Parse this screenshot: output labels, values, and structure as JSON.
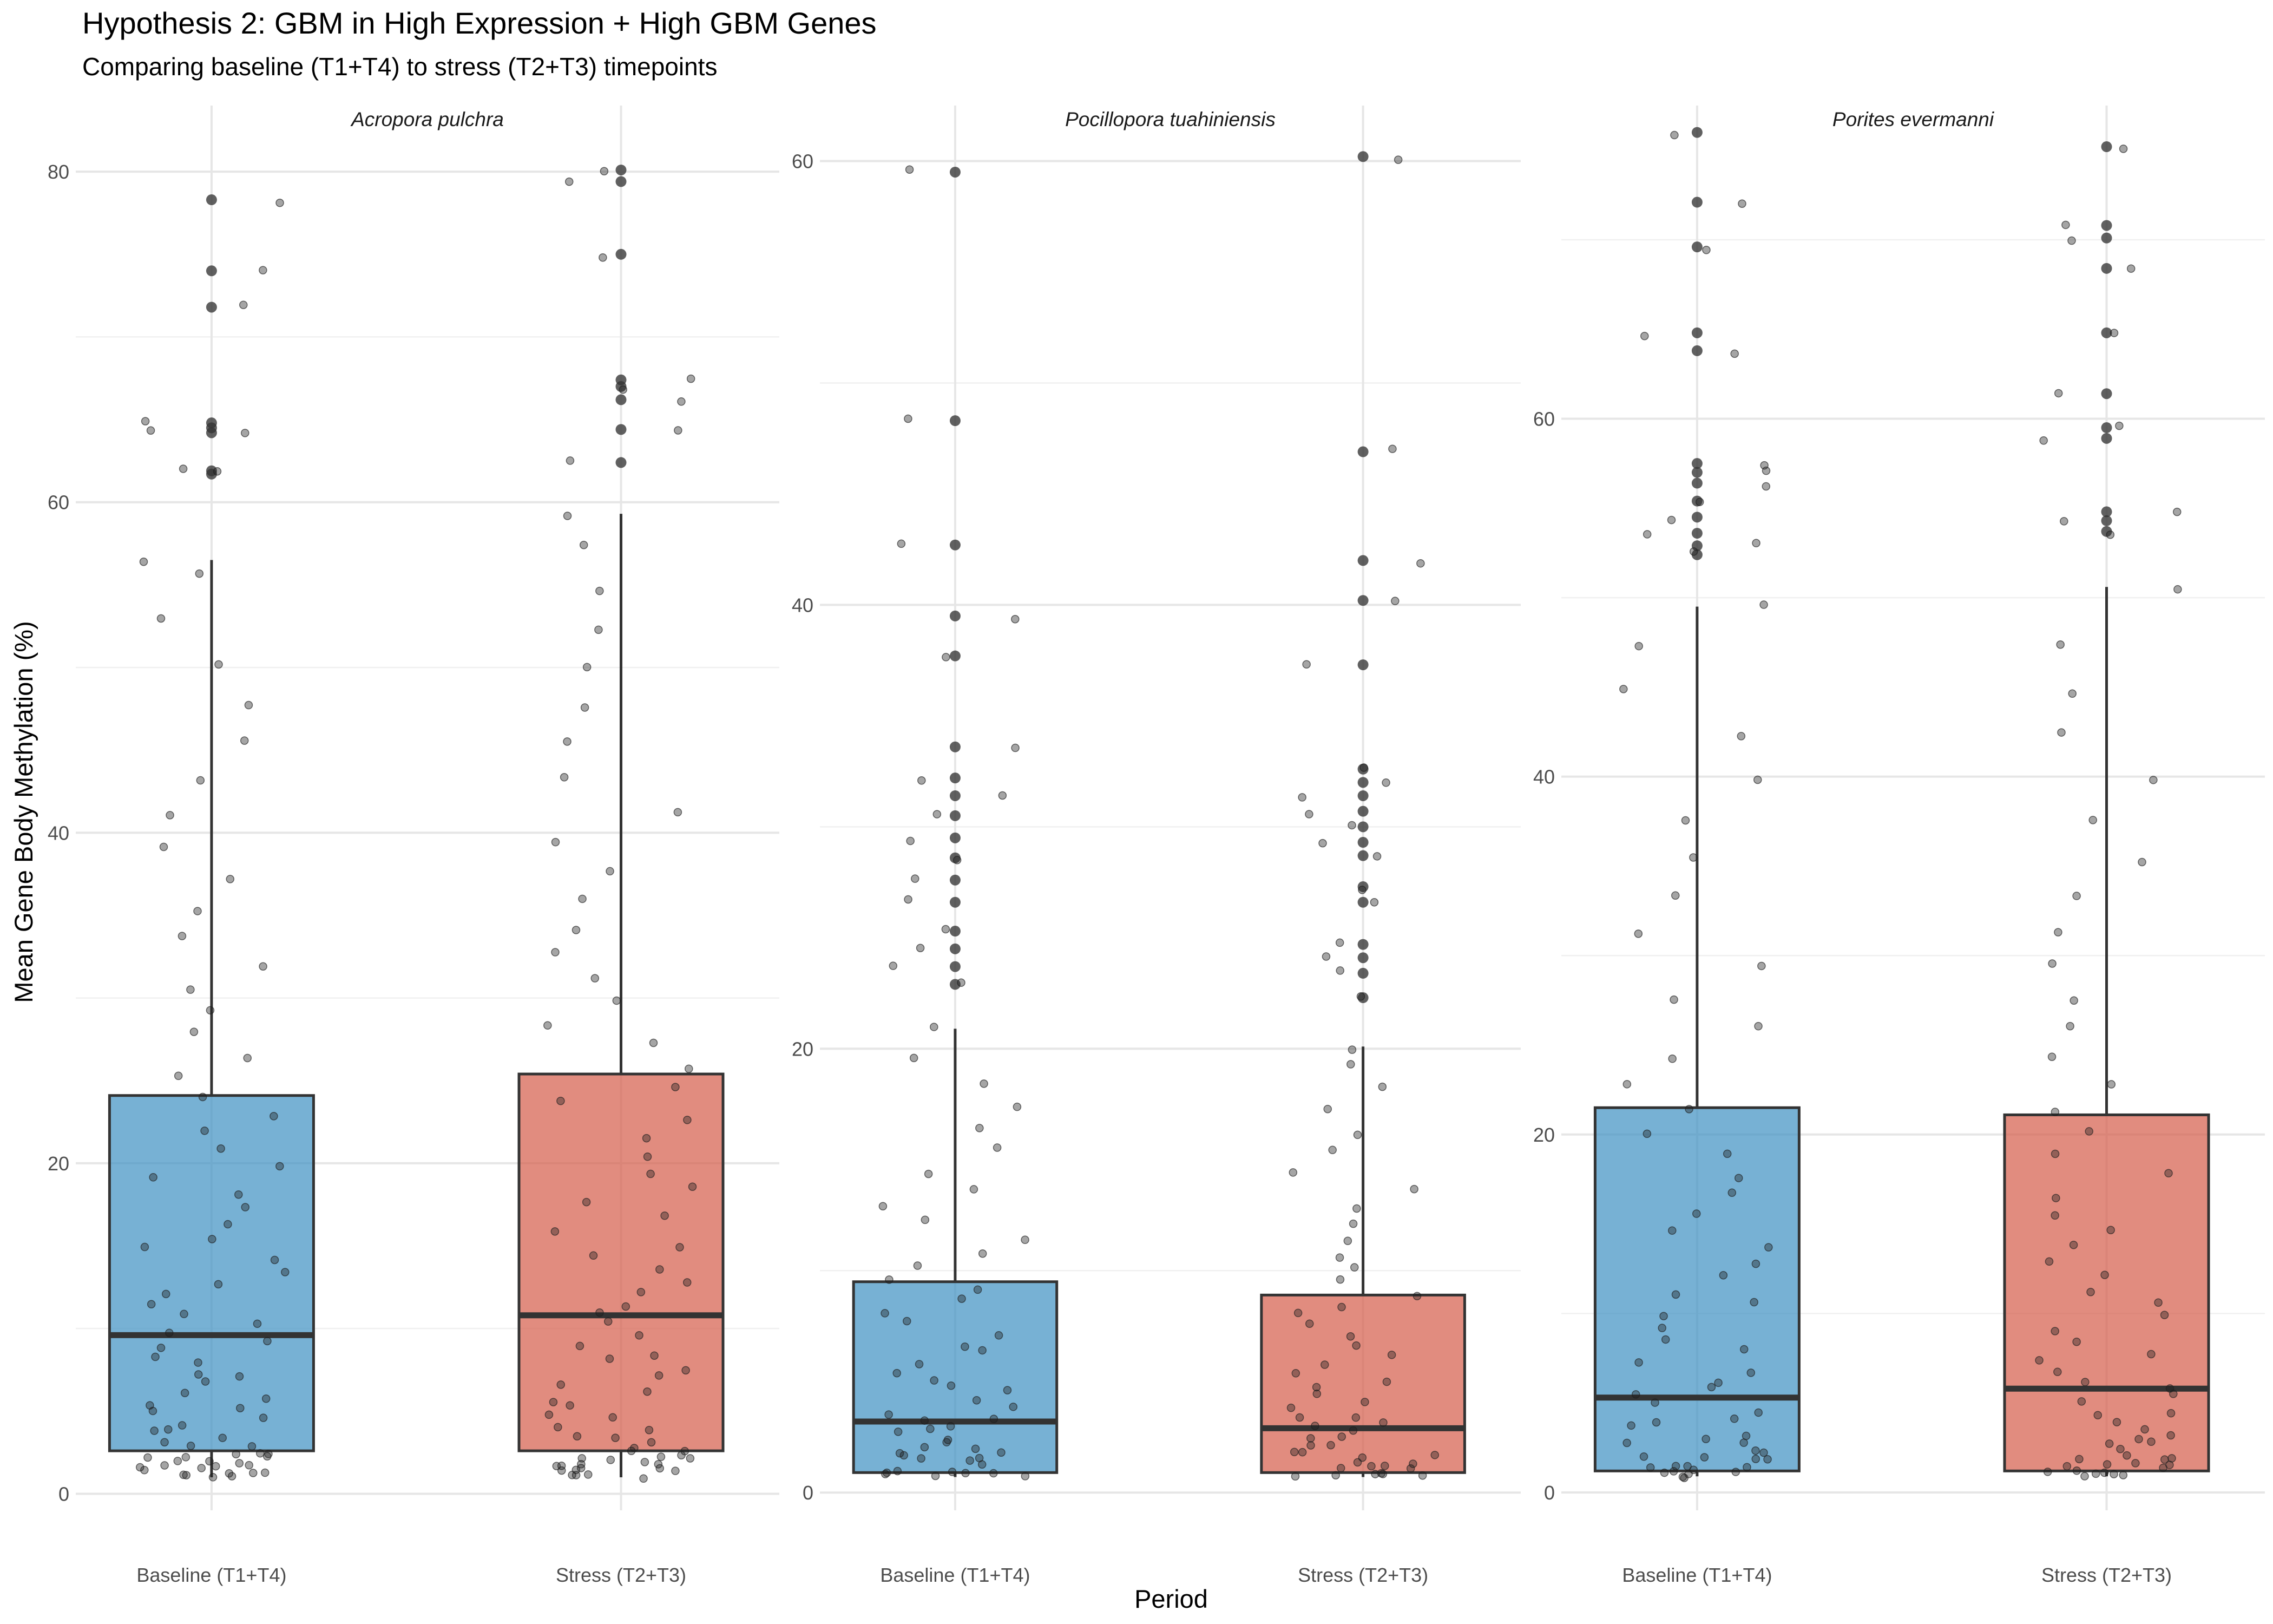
{
  "title": "Hypothesis 2: GBM in High Expression + High GBM Genes",
  "subtitle": "Comparing baseline (T1+T4) to stress (T2+T3) timepoints",
  "chart_data": {
    "type": "box",
    "title": "Hypothesis 2: GBM in High Expression + High GBM Genes",
    "subtitle": "Comparing baseline (T1+T4) to stress (T2+T3) timepoints",
    "xlabel": "Period",
    "ylabel": "Mean Gene Body Methylation (%)",
    "categories": [
      "Baseline (T1+T4)",
      "Stress (T2+T3)"
    ],
    "colors": {
      "Baseline (T1+T4)": "#4393c3",
      "Stress (T2+T3)": "#d6604d"
    },
    "grid": true,
    "legend": "none",
    "panels": [
      {
        "strip": "Acropora pulchra",
        "ylim": [
          -1,
          84
        ],
        "yticks": [
          0,
          20,
          40,
          60,
          80
        ],
        "boxes": [
          {
            "category": "Baseline (T1+T4)",
            "whisker_low": 1.0,
            "q1": 2.6,
            "median": 9.6,
            "q3": 24.1,
            "whisker_high": 56.5,
            "outliers": [
              61.7,
              61.9,
              64.2,
              64.5,
              64.8,
              71.8,
              74.0,
              78.3
            ],
            "points": [
              1.0,
              1.1,
              1.2,
              1.2,
              1.3,
              1.3,
              1.4,
              1.4,
              1.5,
              1.5,
              1.6,
              1.6,
              1.7,
              1.8,
              1.9,
              2.0,
              2.1,
              2.2,
              2.3,
              2.4,
              2.5,
              2.6,
              2.8,
              3.0,
              3.2,
              3.5,
              3.7,
              4.0,
              4.3,
              4.6,
              4.9,
              5.2,
              5.5,
              5.8,
              6.2,
              6.6,
              7.0,
              7.4,
              7.8,
              8.3,
              8.8,
              9.3,
              9.8,
              10.3,
              10.9,
              11.5,
              12.1,
              12.7,
              13.4,
              14.1,
              14.8,
              15.6,
              16.4,
              17.2,
              18.1,
              19.0,
              19.9,
              20.9,
              21.9,
              23.0,
              24.1,
              25.3,
              26.5,
              27.8,
              29.2,
              30.6,
              32.1,
              33.7,
              35.3,
              37.1,
              39.0,
              41.0,
              43.1,
              45.4,
              47.8,
              50.3,
              53.0,
              55.5,
              56.5,
              61.7,
              61.9,
              64.2,
              64.5,
              64.8,
              71.8,
              74.0,
              78.3
            ]
          },
          {
            "category": "Stress (T2+T3)",
            "whisker_low": 1.0,
            "q1": 2.6,
            "median": 10.8,
            "q3": 25.4,
            "whisker_high": 59.3,
            "outliers": [
              62.4,
              64.4,
              66.2,
              67.0,
              67.4,
              75.0,
              79.4,
              80.1
            ],
            "points": [
              1.0,
              1.1,
              1.2,
              1.2,
              1.3,
              1.3,
              1.4,
              1.4,
              1.5,
              1.5,
              1.6,
              1.7,
              1.8,
              1.9,
              2.0,
              2.1,
              2.2,
              2.3,
              2.4,
              2.5,
              2.6,
              2.8,
              3.0,
              3.3,
              3.6,
              3.9,
              4.2,
              4.5,
              4.9,
              5.3,
              5.7,
              6.1,
              6.5,
              7.0,
              7.5,
              8.0,
              8.5,
              9.1,
              9.7,
              10.3,
              10.9,
              11.5,
              12.2,
              12.9,
              13.6,
              14.3,
              15.1,
              15.9,
              16.7,
              17.6,
              18.5,
              19.4,
              20.4,
              21.4,
              22.5,
              23.6,
              24.7,
              25.9,
              27.1,
              28.4,
              29.8,
              31.2,
              32.7,
              34.3,
              35.9,
              37.6,
              39.4,
              41.3,
              43.3,
              45.4,
              47.6,
              49.9,
              52.3,
              54.8,
              57.3,
              59.3,
              62.4,
              64.4,
              66.2,
              67.0,
              67.4,
              75.0,
              79.4,
              80.1
            ]
          }
        ]
      },
      {
        "strip": "Pocillopora tuahiniensis",
        "ylim": [
          -0.8,
          62.5
        ],
        "yticks": [
          0,
          20,
          40,
          60
        ],
        "boxes": [
          {
            "category": "Baseline (T1+T4)",
            "whisker_low": 0.7,
            "q1": 0.9,
            "median": 3.2,
            "q3": 9.5,
            "whisker_high": 20.9,
            "outliers": [
              22.9,
              23.7,
              24.5,
              25.3,
              26.6,
              27.6,
              28.6,
              29.5,
              30.5,
              31.4,
              32.2,
              33.6,
              37.7,
              39.5,
              42.7,
              48.3,
              59.5
            ],
            "points": [
              0.7,
              0.75,
              0.8,
              0.85,
              0.9,
              0.95,
              1.0,
              1.1,
              1.2,
              1.3,
              1.4,
              1.5,
              1.6,
              1.7,
              1.8,
              1.9,
              2.0,
              2.2,
              2.4,
              2.6,
              2.8,
              3.0,
              3.2,
              3.4,
              3.6,
              3.9,
              4.2,
              4.5,
              4.8,
              5.1,
              5.5,
              5.9,
              6.3,
              6.7,
              7.1,
              7.6,
              8.1,
              8.6,
              9.1,
              9.6,
              10.2,
              10.8,
              11.5,
              12.2,
              12.9,
              13.7,
              14.5,
              15.4,
              16.3,
              17.3,
              18.4,
              19.5,
              20.9,
              22.9,
              23.7,
              24.5,
              25.3,
              26.6,
              27.6,
              28.6,
              29.5,
              30.5,
              31.4,
              32.2,
              33.6,
              37.7,
              39.5,
              42.7,
              48.3,
              59.5
            ]
          },
          {
            "category": "Stress (T2+T3)",
            "whisker_low": 0.7,
            "q1": 0.9,
            "median": 2.9,
            "q3": 8.9,
            "whisker_high": 20.1,
            "outliers": [
              22.3,
              23.4,
              24.1,
              24.7,
              26.6,
              27.3,
              28.7,
              29.3,
              30.0,
              30.7,
              31.4,
              32.0,
              32.6,
              37.3,
              40.2,
              42.0,
              46.9,
              60.2
            ],
            "points": [
              0.7,
              0.75,
              0.8,
              0.85,
              0.9,
              0.95,
              1.0,
              1.1,
              1.2,
              1.3,
              1.4,
              1.5,
              1.6,
              1.7,
              1.8,
              1.9,
              2.0,
              2.1,
              2.3,
              2.5,
              2.7,
              2.9,
              3.1,
              3.3,
              3.5,
              3.8,
              4.1,
              4.4,
              4.7,
              5.0,
              5.4,
              5.8,
              6.2,
              6.6,
              7.0,
              7.5,
              8.0,
              8.5,
              9.0,
              9.5,
              10.1,
              10.7,
              11.4,
              12.1,
              12.8,
              13.6,
              14.4,
              15.3,
              16.2,
              17.2,
              18.3,
              19.4,
              20.1,
              22.3,
              23.4,
              24.1,
              24.7,
              26.6,
              27.3,
              28.7,
              29.3,
              30.0,
              30.7,
              31.4,
              32.0,
              32.6,
              37.3,
              40.2,
              42.0,
              46.9,
              60.2
            ]
          }
        ]
      },
      {
        "strip": "Porites evermanni",
        "ylim": [
          -1,
          77.5
        ],
        "yticks": [
          0,
          20,
          40,
          60
        ],
        "boxes": [
          {
            "category": "Baseline (T1+T4)",
            "whisker_low": 0.9,
            "q1": 1.2,
            "median": 5.3,
            "q3": 21.5,
            "whisker_high": 49.5,
            "outliers": [
              52.4,
              52.9,
              53.6,
              54.5,
              55.4,
              56.4,
              57.0,
              57.5,
              63.8,
              64.8,
              69.6,
              72.1,
              76.0
            ],
            "points": [
              0.9,
              0.95,
              1.0,
              1.05,
              1.1,
              1.15,
              1.2,
              1.3,
              1.4,
              1.5,
              1.6,
              1.7,
              1.8,
              1.9,
              2.0,
              2.2,
              2.4,
              2.6,
              2.8,
              3.0,
              3.3,
              3.6,
              3.9,
              4.2,
              4.6,
              5.0,
              5.4,
              5.8,
              6.3,
              6.8,
              7.3,
              7.9,
              8.5,
              9.1,
              9.8,
              10.5,
              11.2,
              12.0,
              12.8,
              13.7,
              14.6,
              15.6,
              16.6,
              17.7,
              18.9,
              20.1,
              21.4,
              22.8,
              24.3,
              25.9,
              27.6,
              29.4,
              31.3,
              33.3,
              35.4,
              37.6,
              39.9,
              42.3,
              44.8,
              47.4,
              49.5,
              52.4,
              52.9,
              53.6,
              54.5,
              55.4,
              56.4,
              57.0,
              57.5,
              63.8,
              64.8,
              69.6,
              72.1,
              76.0
            ]
          },
          {
            "category": "Stress (T2+T3)",
            "whisker_low": 0.9,
            "q1": 1.2,
            "median": 5.8,
            "q3": 21.1,
            "whisker_high": 50.6,
            "outliers": [
              53.7,
              54.3,
              54.8,
              58.9,
              59.5,
              61.4,
              64.8,
              68.4,
              70.1,
              70.8,
              75.2
            ],
            "points": [
              0.9,
              0.95,
              1.0,
              1.05,
              1.1,
              1.15,
              1.2,
              1.3,
              1.4,
              1.5,
              1.6,
              1.7,
              1.8,
              1.9,
              2.0,
              2.2,
              2.4,
              2.6,
              2.8,
              3.0,
              3.3,
              3.6,
              3.9,
              4.2,
              4.6,
              5.0,
              5.4,
              5.8,
              6.3,
              6.8,
              7.3,
              7.9,
              8.5,
              9.1,
              9.8,
              10.5,
              11.2,
              12.0,
              12.8,
              13.7,
              14.6,
              15.6,
              16.6,
              17.7,
              18.9,
              20.1,
              21.4,
              22.8,
              24.3,
              25.9,
              27.6,
              29.4,
              31.3,
              33.3,
              35.4,
              37.6,
              39.9,
              42.3,
              44.8,
              47.4,
              50.6,
              53.7,
              54.3,
              54.8,
              58.9,
              59.5,
              61.4,
              64.8,
              68.4,
              70.1,
              70.8,
              75.2
            ]
          }
        ]
      }
    ]
  }
}
